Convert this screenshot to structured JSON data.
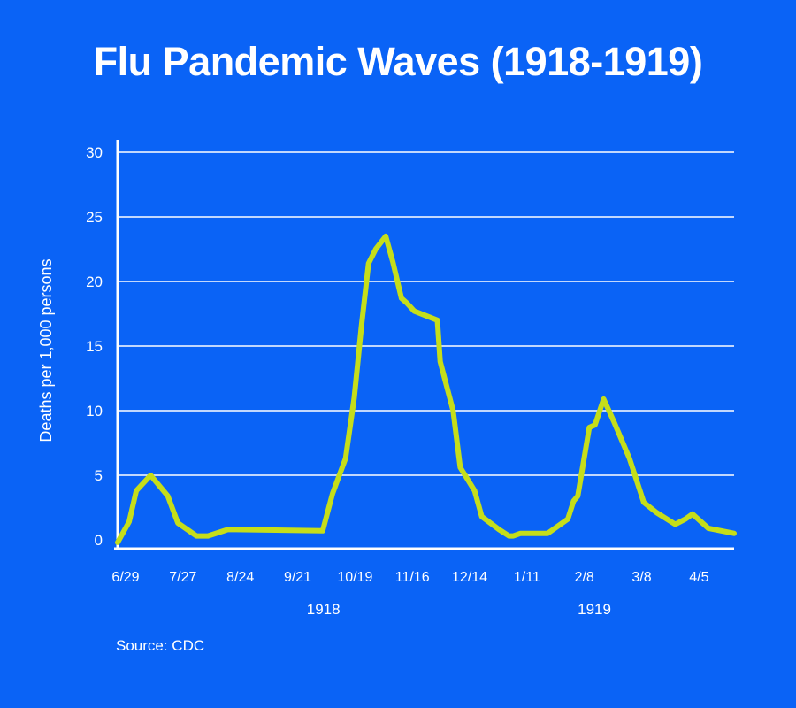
{
  "chart_data": {
    "type": "line",
    "title": "Flu Pandemic Waves (1918-1919)",
    "ylabel": "Deaths per 1,000 persons",
    "xlabel": "",
    "ylim": [
      0,
      30
    ],
    "yticks": [
      0,
      5,
      10,
      15,
      20,
      25,
      30
    ],
    "grid": true,
    "xlim_weeks": [
      0,
      43
    ],
    "xticks": [
      {
        "label": "6/29",
        "week": 0
      },
      {
        "label": "7/27",
        "week": 4
      },
      {
        "label": "8/24",
        "week": 8
      },
      {
        "label": "9/21",
        "week": 12
      },
      {
        "label": "10/19",
        "week": 16
      },
      {
        "label": "11/16",
        "week": 20
      },
      {
        "label": "12/14",
        "week": 24
      },
      {
        "label": "1/11",
        "week": 28
      },
      {
        "label": "2/8",
        "week": 32
      },
      {
        "label": "3/8",
        "week": 36
      },
      {
        "label": "4/5",
        "week": 40
      }
    ],
    "year_labels": [
      {
        "label": "1918",
        "week": 13.8
      },
      {
        "label": "1919",
        "week": 32.7
      }
    ],
    "series": [
      {
        "name": "Deaths per 1,000 persons",
        "color": "#c5de1a",
        "x": [
          0,
          0.8,
          1.3,
          2.3,
          3.5,
          4.2,
          5.5,
          6.3,
          7.7,
          14.3,
          15.0,
          15.9,
          16.5,
          17.0,
          17.5,
          18.0,
          18.7,
          19.2,
          19.8,
          20.2,
          20.7,
          22.3,
          22.5,
          23.4,
          23.9,
          24.9,
          25.4,
          26.6,
          27.3,
          27.6,
          28.1,
          30.0,
          31.4,
          31.8,
          32.1,
          32.9,
          33.3,
          33.9,
          34.6,
          35.7,
          36.7,
          37.6,
          38.9,
          39.6,
          40.1,
          41.2,
          43.0
        ],
        "values": [
          -0.2,
          1.4,
          3.8,
          5.0,
          3.4,
          1.3,
          0.3,
          0.3,
          0.8,
          0.7,
          3.6,
          6.3,
          11.0,
          16.5,
          21.4,
          22.5,
          23.5,
          21.5,
          18.7,
          18.3,
          17.7,
          17.0,
          13.8,
          10.0,
          5.6,
          3.8,
          1.8,
          0.8,
          0.3,
          0.3,
          0.5,
          0.5,
          1.6,
          3.0,
          3.4,
          8.7,
          8.9,
          10.9,
          9.2,
          6.3,
          2.9,
          2.1,
          1.2,
          1.6,
          2.0,
          0.9,
          0.5
        ]
      }
    ]
  },
  "source": "Source: CDC"
}
